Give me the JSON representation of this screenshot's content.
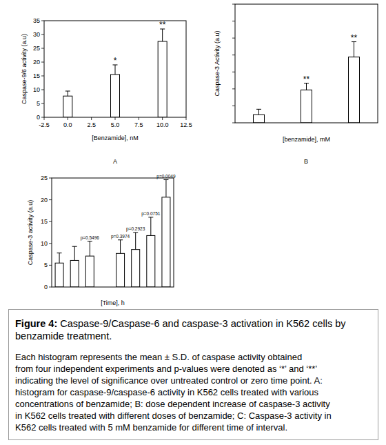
{
  "chart_data": [
    {
      "type": "bar",
      "x_label": "[Benzamide], nM",
      "y_label": "Caspase-9/6 activity (a.u)",
      "x": [
        0,
        5,
        10
      ],
      "values": [
        7.7,
        15.5,
        27.5
      ],
      "errors": [
        1.8,
        3.5,
        4.5
      ],
      "annotations": [
        null,
        "*",
        "**"
      ],
      "color": "#ffffff",
      "xlim": [
        -2.5,
        12.5
      ],
      "xticks": [
        -2.5,
        {
          "value": 0,
          "label": "0.0"
        },
        2.5,
        {
          "value": 5,
          "label": "5.0"
        },
        7.5,
        {
          "value": 10,
          "label": "10.0"
        },
        12.5
      ],
      "ylim": [
        0,
        35
      ],
      "yticks": [
        0,
        5,
        10,
        15,
        20,
        25,
        30,
        35
      ],
      "grid": false
    },
    {
      "type": "bar",
      "x_label": "[benzamide], mM",
      "y_label": "Caspase-3 Activity (a.u)",
      "categories": [
        null,
        null,
        null
      ],
      "values": [
        2.4,
        9.7,
        19.4
      ],
      "errors": [
        1.6,
        2.0,
        4.5
      ],
      "annotations": [
        null,
        "**",
        "**"
      ],
      "color": "#ffffff",
      "ylim": [
        0,
        35
      ],
      "yticks": [
        0,
        5,
        10,
        15,
        20,
        25,
        30,
        35
      ],
      "tick_labels": false,
      "grid": false
    },
    {
      "type": "bar",
      "x_label": "[Time], h",
      "y_label": "Caspase-3 activity (a.u)",
      "categories": [
        null,
        null,
        null,
        null,
        null,
        null,
        null,
        null
      ],
      "values": [
        5.5,
        6.1,
        7.1,
        null,
        7.7,
        8.6,
        11.8,
        20.6
      ],
      "errors": [
        2.3,
        3.2,
        3.4,
        null,
        3.1,
        3.9,
        4.2,
        4.0
      ],
      "annotations": [
        null,
        null,
        "p=0.5496",
        null,
        "p=0.3974",
        "p=0.2923",
        "p=0.0751",
        "p=0.0049"
      ],
      "color": "#ffffff",
      "ylim": [
        0,
        25
      ],
      "yticks": [
        0,
        5,
        10,
        15,
        20,
        25
      ],
      "tick_labels": "y",
      "grid": false
    }
  ],
  "panel_labels": [
    "A",
    "B"
  ],
  "caption": {
    "figure_label": "Figure 4:",
    "heading_lines": [
      "Caspase-9/Caspase-6 and caspase-3 activation in K562 cells by",
      "benzamide treatment."
    ],
    "body_lines": [
      "Each histogram represents the mean ± S.D. of caspase activity obtained",
      "from four independent experiments and p-values were denoted as ‘*’ and ‘**’",
      "indicating the level of significance over untreated control or zero time point. A:",
      "histogram for caspase-9/caspase-6 activity in K562 cells treated with various",
      "concentrations of benzamide; B: dose dependent increase of caspase-3 activity",
      "in K562 cells treated with different doses of benzamide; C: Caspase-3 activity in",
      "K562 cells treated with 5 mM benzamide for different time of interval."
    ]
  }
}
